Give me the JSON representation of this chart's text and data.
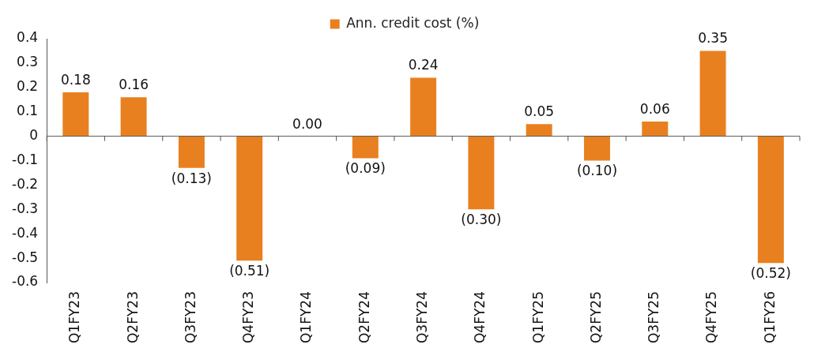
{
  "chart_data": {
    "type": "bar",
    "categories": [
      "Q1FY23",
      "Q2FY23",
      "Q3FY23",
      "Q4FY23",
      "Q1FY24",
      "Q2FY24",
      "Q3FY24",
      "Q4FY24",
      "Q1FY25",
      "Q2FY25",
      "Q3FY25",
      "Q4FY25",
      "Q1FY26"
    ],
    "series": [
      {
        "name": "Ann. credit cost (%)",
        "color": "#e8801f",
        "values": [
          0.18,
          0.16,
          -0.13,
          -0.51,
          0.0,
          -0.09,
          0.24,
          -0.3,
          0.05,
          -0.1,
          0.06,
          0.35,
          -0.52
        ],
        "value_labels": [
          "0.18",
          "0.16",
          "(0.13)",
          "(0.51)",
          "0.00",
          "(0.09)",
          "0.24",
          "(0.30)",
          "0.05",
          "(0.10)",
          "0.06",
          "0.35",
          "(0.52)"
        ]
      }
    ],
    "ylim": [
      -0.6,
      0.4
    ],
    "yticks": [
      -0.6,
      -0.5,
      -0.4,
      -0.3,
      -0.2,
      -0.1,
      0,
      0.1,
      0.2,
      0.3,
      0.4
    ],
    "legend": "top"
  }
}
